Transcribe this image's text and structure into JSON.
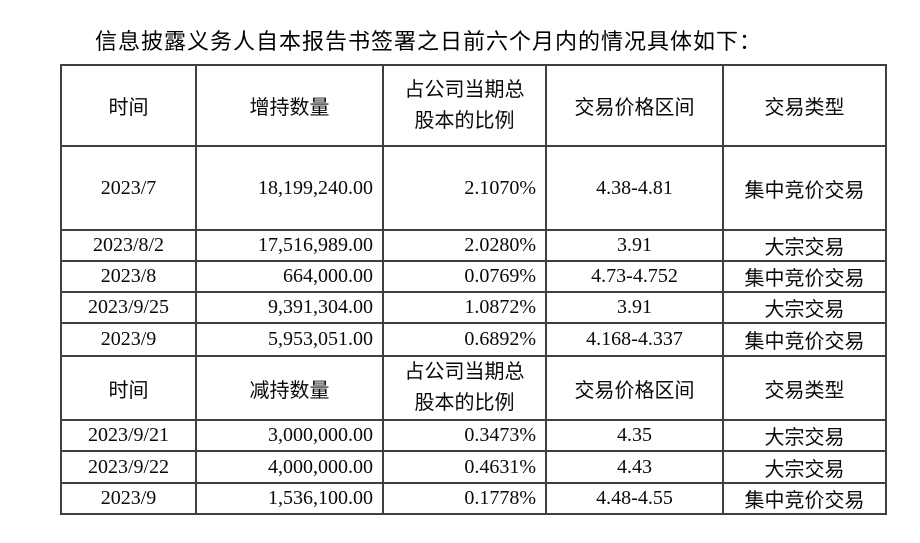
{
  "page": {
    "title": "信息披露义务人自本报告书签署之日前六个月内的情况具体如下："
  },
  "table": {
    "sections": [
      {
        "headers": [
          "时间",
          "增持数量",
          "占公司当期总\n股本的比例",
          "交易价格区间",
          "交易类型"
        ],
        "rows": [
          [
            "2023/7",
            "18,199,240.00",
            "2.1070%",
            "4.38-4.81",
            "集中竞价交易"
          ],
          [
            "2023/8/2",
            "17,516,989.00",
            "2.0280%",
            "3.91",
            "大宗交易"
          ],
          [
            "2023/8",
            "664,000.00",
            "0.0769%",
            "4.73-4.752",
            "集中竞价交易"
          ],
          [
            "2023/9/25",
            "9,391,304.00",
            "1.0872%",
            "3.91",
            "大宗交易"
          ],
          [
            "2023/9",
            "5,953,051.00",
            "0.6892%",
            "4.168-4.337",
            "集中竞价交易"
          ]
        ]
      },
      {
        "headers": [
          "时间",
          "减持数量",
          "占公司当期总\n股本的比例",
          "交易价格区间",
          "交易类型"
        ],
        "rows": [
          [
            "2023/9/21",
            "3,000,000.00",
            "0.3473%",
            "4.35",
            "大宗交易"
          ],
          [
            "2023/9/22",
            "4,000,000.00",
            "0.4631%",
            "4.43",
            "大宗交易"
          ],
          [
            "2023/9",
            "1,536,100.00",
            "0.1778%",
            "4.48-4.55",
            "集中竞价交易"
          ]
        ]
      }
    ]
  }
}
